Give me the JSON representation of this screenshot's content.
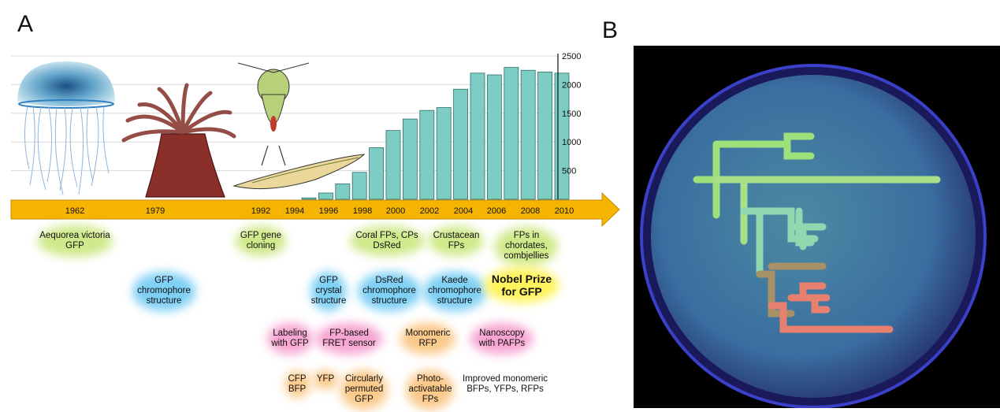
{
  "panels": {
    "a": "A",
    "b": "B"
  },
  "chart_data": {
    "type": "bar",
    "categories": [
      "1994",
      "1995",
      "1996",
      "1997",
      "1998",
      "1999",
      "2000",
      "2001",
      "2002",
      "2003",
      "2004",
      "2005",
      "2006",
      "2007",
      "2008",
      "2009"
    ],
    "values": [
      25,
      110,
      270,
      470,
      900,
      1200,
      1400,
      1550,
      1600,
      1920,
      2200,
      2170,
      2300,
      2250,
      2220,
      2200
    ],
    "ylim": [
      0,
      2500
    ],
    "y_ticks": [
      "500",
      "1000",
      "1500",
      "2000",
      "2500"
    ],
    "bar_color": "#7dcdc4"
  },
  "timeline": {
    "years": [
      "1962",
      "1979",
      "1992",
      "1994",
      "1996",
      "1998",
      "2000",
      "2002",
      "2004",
      "2006",
      "2008",
      "2010"
    ],
    "arrow_color": "#f5b400"
  },
  "events": [
    {
      "text": "Aequorea victoria\nGFP",
      "color": "#cfe98a"
    },
    {
      "text": "GFP gene\ncloning",
      "color": "#cfe98a"
    },
    {
      "text": "Coral FPs, CPs\nDsRed",
      "color": "#cfe98a"
    },
    {
      "text": "Crustacean\nFPs",
      "color": "#cfe98a"
    },
    {
      "text": "FPs in\nchordates,\ncombjellies",
      "color": "#cfe98a"
    },
    {
      "text": "GFP\nchromophore\nstructure",
      "color": "#7fd0f5"
    },
    {
      "text": "GFP\ncrystal\nstructure",
      "color": "#7fd0f5"
    },
    {
      "text": "DsRed\nchromophore\nstructure",
      "color": "#7fd0f5"
    },
    {
      "text": "Kaede\nchromophore\nstructure",
      "color": "#7fd0f5"
    },
    {
      "text": "Nobel Prize\nfor GFP",
      "color": "#fff35c"
    },
    {
      "text": "Labeling\nwith GFP",
      "color": "#f7a6d2"
    },
    {
      "text": "FP-based\nFRET sensor",
      "color": "#f7a6d2"
    },
    {
      "text": "Monomeric\nRFP",
      "color": "#fbc98a"
    },
    {
      "text": "Nanoscopy\nwith PAFPs",
      "color": "#f7a6d2"
    },
    {
      "text": "CFP\nBFP",
      "color": "#fbc98a"
    },
    {
      "text": "YFP",
      "color": "#fbc98a"
    },
    {
      "text": "Circularly\npermuted\nGFP",
      "color": "#fbc98a"
    },
    {
      "text": "Photo-\nactivatable\nFPs",
      "color": "#fbc98a"
    },
    {
      "text": "Improved monomeric\nBFPs, YFPs, RFPs",
      "color": "#fbc98a"
    }
  ],
  "organisms": [
    "jellyfish-illustration",
    "sea-anemone-illustration",
    "copepod-illustration",
    "lancelet-illustration"
  ]
}
